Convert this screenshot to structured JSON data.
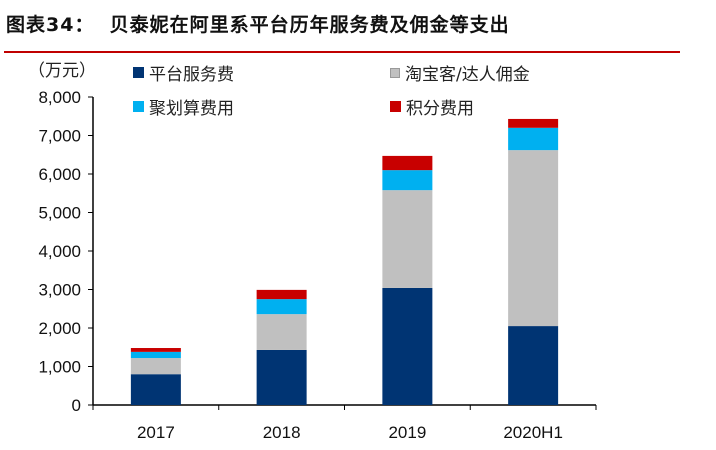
{
  "title": "图表34：  贝泰妮在阿里系平台历年服务费及佣金等支出",
  "chart_data": {
    "type": "bar",
    "stacked": true,
    "ylabel": "（万元）",
    "categories": [
      "2017",
      "2018",
      "2019",
      "2020H1"
    ],
    "ylim": [
      0,
      8000
    ],
    "yticks": [
      0,
      1000,
      2000,
      3000,
      4000,
      5000,
      6000,
      7000,
      8000
    ],
    "ytick_labels": [
      "0",
      "1,000",
      "2,000",
      "3,000",
      "4,000",
      "5,000",
      "6,000",
      "7,000",
      "8,000"
    ],
    "grid": false,
    "legend_placement": "top",
    "series": [
      {
        "name": "平台服务费",
        "color": "#003473",
        "values": [
          800,
          1430,
          3040,
          2050
        ]
      },
      {
        "name": "淘宝客/达人佣金",
        "color": "#c0c0c0",
        "values": [
          420,
          930,
          2540,
          4570
        ]
      },
      {
        "name": "聚划算费用",
        "color": "#00b0f0",
        "values": [
          160,
          390,
          520,
          580
        ]
      },
      {
        "name": "积分费用",
        "color": "#c80000",
        "values": [
          100,
          240,
          370,
          230
        ]
      }
    ]
  }
}
